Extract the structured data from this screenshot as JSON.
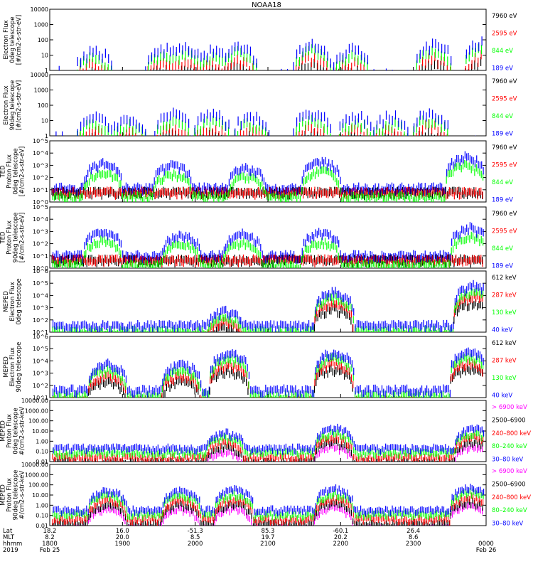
{
  "title": "NOAA18",
  "colors": {
    "black": "#000000",
    "red": "#ff0000",
    "green": "#00ff00",
    "blue": "#0000ff",
    "magenta": "#ff00ff"
  },
  "chart_data": [
    {
      "type": "scatter",
      "ylabel": [
        "Electron Flux",
        "0deg telescope",
        "[#/cm2-s-str-eV]"
      ],
      "yscale": "log",
      "ylim": [
        1,
        10000
      ],
      "ticks": [
        "1",
        "10",
        "100",
        "1000",
        "10000"
      ],
      "legend": [
        {
          "name": "7960 eV",
          "color": "#000000"
        },
        {
          "name": "2595 eV",
          "color": "#ff0000"
        },
        {
          "name": "844 eV",
          "color": "#00ff00"
        },
        {
          "name": "189 eV",
          "color": "#0000ff"
        }
      ],
      "bursts": [
        [
          0.1,
          30,
          0.3
        ],
        [
          0.26,
          40,
          0.3
        ],
        [
          0.31,
          50,
          0.3
        ],
        [
          0.37,
          30,
          0.3
        ],
        [
          0.43,
          60,
          0.5
        ],
        [
          0.6,
          80,
          0.8
        ],
        [
          0.69,
          40,
          0.4
        ],
        [
          0.88,
          80,
          0.6
        ],
        [
          0.99,
          100,
          0.7
        ]
      ]
    },
    {
      "type": "scatter",
      "ylabel": [
        "Electron Flux",
        "90deg telescope",
        "[#/cm2-s-str-eV]"
      ],
      "yscale": "log",
      "ylim": [
        1,
        10000
      ],
      "ticks": [
        "1",
        "10",
        "100",
        "1000",
        "10000"
      ],
      "legend": [
        {
          "name": "7960 eV",
          "color": "#000000"
        },
        {
          "name": "2595 eV",
          "color": "#ff0000"
        },
        {
          "name": "844 eV",
          "color": "#00ff00"
        },
        {
          "name": "189 eV",
          "color": "#0000ff"
        }
      ],
      "bursts": [
        [
          0.1,
          25,
          0.3
        ],
        [
          0.18,
          20,
          0.2
        ],
        [
          0.28,
          40,
          0.3
        ],
        [
          0.37,
          40,
          0.3
        ],
        [
          0.46,
          30,
          0.3
        ],
        [
          0.6,
          50,
          0.5
        ],
        [
          0.7,
          30,
          0.3
        ],
        [
          0.78,
          30,
          0.3
        ],
        [
          0.87,
          60,
          0.5
        ]
      ]
    },
    {
      "type": "line",
      "ylabel": [
        "TED",
        "Proton Flux",
        "0deg telescope",
        "[#/cm2-s-str-eV]"
      ],
      "yscale": "log",
      "ylim": [
        1,
        100000
      ],
      "ticks": [
        "10^0",
        "10^1",
        "10^2",
        "10^3",
        "10^4",
        "10^5"
      ],
      "legend": [
        {
          "name": "7960 eV",
          "color": "#000000"
        },
        {
          "name": "2595 eV",
          "color": "#ff0000"
        },
        {
          "name": "844 eV",
          "color": "#00ff00"
        },
        {
          "name": "189 eV",
          "color": "#0000ff"
        }
      ],
      "bursts": [
        [
          0.12,
          2000,
          0.4
        ],
        [
          0.28,
          1500,
          0.4
        ],
        [
          0.45,
          1000,
          0.5
        ],
        [
          0.62,
          3000,
          0.5
        ],
        [
          0.95,
          8000,
          0.6
        ]
      ]
    },
    {
      "type": "line",
      "ylabel": [
        "TED",
        "Proton Flux",
        "90deg telescope",
        "[#/cm2-s-str-eV]"
      ],
      "yscale": "log",
      "ylim": [
        1,
        100000
      ],
      "ticks": [
        "10^0",
        "10^1",
        "10^2",
        "10^3",
        "10^4",
        "10^5"
      ],
      "legend": [
        {
          "name": "7960 eV",
          "color": "#000000"
        },
        {
          "name": "2595 eV",
          "color": "#ff0000"
        },
        {
          "name": "844 eV",
          "color": "#00ff00"
        },
        {
          "name": "189 eV",
          "color": "#0000ff"
        }
      ],
      "bursts": [
        [
          0.12,
          1500,
          0.4
        ],
        [
          0.3,
          800,
          0.4
        ],
        [
          0.44,
          900,
          0.4
        ],
        [
          0.62,
          1200,
          0.5
        ],
        [
          0.96,
          3000,
          0.6
        ]
      ]
    },
    {
      "type": "scatter",
      "ylabel": [
        "MEPED",
        "Electron Flux",
        "0deg telescope"
      ],
      "yscale": "log",
      "ylim": [
        10,
        1000000
      ],
      "ticks": [
        "10^1",
        "10^2",
        "10^3",
        "10^4",
        "10^5",
        "10^6"
      ],
      "legend": [
        {
          "name": "612 keV",
          "color": "#000000"
        },
        {
          "name": "287 keV",
          "color": "#ff0000"
        },
        {
          "name": "130 keV",
          "color": "#00ff00"
        },
        {
          "name": "40 keV",
          "color": "#0000ff"
        }
      ],
      "bursts": [
        [
          0.4,
          800,
          0.4
        ],
        [
          0.65,
          30000,
          1.0
        ],
        [
          0.97,
          100000,
          1.0
        ]
      ]
    },
    {
      "type": "scatter",
      "ylabel": [
        "MEPED",
        "Electron Flux",
        "90deg telescope"
      ],
      "yscale": "log",
      "ylim": [
        10,
        1000000
      ],
      "ticks": [
        "10^1",
        "10^2",
        "10^3",
        "10^4",
        "10^5",
        "10^6"
      ],
      "legend": [
        {
          "name": "612 keV",
          "color": "#000000"
        },
        {
          "name": "287 keV",
          "color": "#ff0000"
        },
        {
          "name": "130 keV",
          "color": "#00ff00"
        },
        {
          "name": "40 keV",
          "color": "#0000ff"
        }
      ],
      "bursts": [
        [
          0.13,
          8000,
          0.5
        ],
        [
          0.3,
          8000,
          0.5
        ],
        [
          0.41,
          60000,
          0.8
        ],
        [
          0.65,
          80000,
          0.9
        ],
        [
          0.96,
          80000,
          0.8
        ]
      ]
    },
    {
      "type": "scatter",
      "ylabel": [
        "MEPED",
        "Proton Flux",
        "0deg telescope",
        "#/cm2-s-str-keV"
      ],
      "yscale": "log",
      "ylim": [
        0.01,
        10000
      ],
      "ticks": [
        "0.01",
        "0.10",
        "1.00",
        "10.00",
        "100.00",
        "1000.00",
        "10000.00"
      ],
      "legend": [
        {
          "name": "> 6900 keV",
          "color": "#ff00ff"
        },
        {
          "name": "2500–6900",
          "color": "#000000"
        },
        {
          "name": "240–800 keV",
          "color": "#ff0000"
        },
        {
          "name": "80–240 keV",
          "color": "#00ff00"
        },
        {
          "name": "30–80 keV",
          "color": "#0000ff"
        }
      ],
      "bursts": [
        [
          0.4,
          10,
          0.8
        ],
        [
          0.65,
          30,
          0.9
        ],
        [
          0.97,
          30,
          0.9
        ]
      ]
    },
    {
      "type": "scatter",
      "ylabel": [
        "MEPED",
        "Proton Flux",
        "90deg telescope",
        "#/cm2-s-str-keV"
      ],
      "yscale": "log",
      "ylim": [
        0.01,
        10000
      ],
      "ticks": [
        "0.01",
        "0.10",
        "1.00",
        "10.00",
        "100.00",
        "1000.00",
        "10000.00"
      ],
      "legend": [
        {
          "name": "> 6900 keV",
          "color": "#ff00ff"
        },
        {
          "name": "2500–6900",
          "color": "#000000"
        },
        {
          "name": "240–800 keV",
          "color": "#ff0000"
        },
        {
          "name": "80–240 keV",
          "color": "#00ff00"
        },
        {
          "name": "30–80 keV",
          "color": "#0000ff"
        }
      ],
      "bursts": [
        [
          0.13,
          40,
          0.6
        ],
        [
          0.3,
          40,
          0.6
        ],
        [
          0.42,
          50,
          0.9
        ],
        [
          0.65,
          60,
          0.9
        ],
        [
          0.96,
          80,
          0.9
        ]
      ]
    }
  ],
  "xaxis": {
    "row_labels": [
      "Lat",
      "MLT",
      "hhmm",
      "2019"
    ],
    "columns": [
      {
        "x": 0.0,
        "vals": [
          "18.2",
          "8.2",
          "1800",
          "Feb 25"
        ]
      },
      {
        "x": 0.1667,
        "vals": [
          "16.0",
          "20.0",
          "1900",
          ""
        ]
      },
      {
        "x": 0.3333,
        "vals": [
          "-51.3",
          "8.5",
          "2000",
          ""
        ]
      },
      {
        "x": 0.5,
        "vals": [
          "85.3",
          "19.7",
          "2100",
          ""
        ]
      },
      {
        "x": 0.6667,
        "vals": [
          "-60.1",
          "20.2",
          "2200",
          ""
        ]
      },
      {
        "x": 0.8333,
        "vals": [
          "26.4",
          "8.6",
          "2300",
          ""
        ]
      },
      {
        "x": 1.0,
        "vals": [
          "",
          "",
          "0000",
          "Feb 26"
        ]
      }
    ]
  }
}
